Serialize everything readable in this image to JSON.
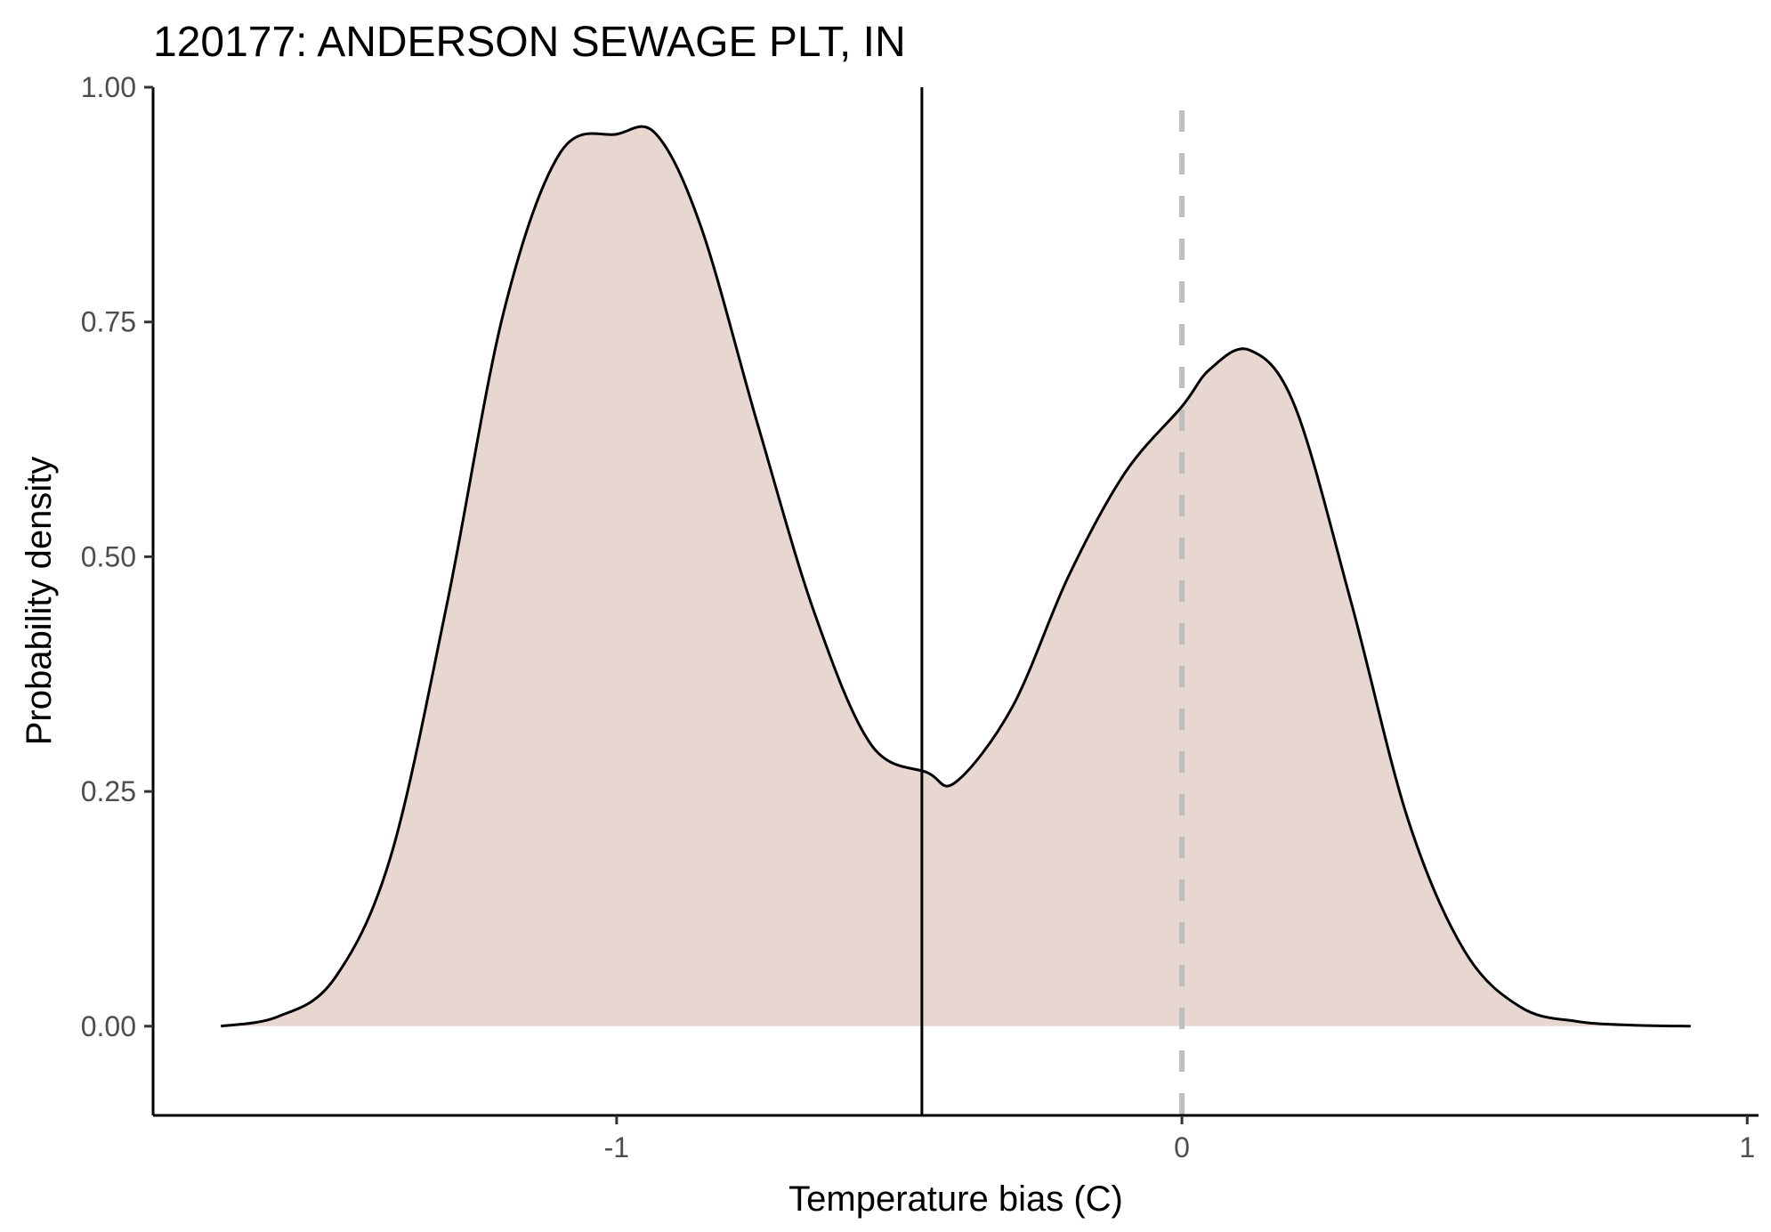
{
  "chart_data": {
    "type": "area",
    "title": "120177: ANDERSON SEWAGE PLT, IN",
    "xlabel": "Temperature bias (C)",
    "ylabel": "Probability density",
    "xlim": [
      -1.82,
      1.02
    ],
    "ylim": [
      -0.095,
      1.0
    ],
    "x_ticks": [
      -1,
      0,
      1
    ],
    "x_tick_labels": [
      "-1",
      "0",
      "1"
    ],
    "y_ticks": [
      0,
      0.25,
      0.5,
      0.75,
      1.0
    ],
    "y_tick_labels": [
      "0.00",
      "0.25",
      "0.50",
      "0.75",
      "1.00"
    ],
    "grid": false,
    "fill_color": "#e8d6d0",
    "line_color": "#000000",
    "density": {
      "x": [
        -1.7,
        -1.6,
        -1.5,
        -1.4,
        -1.3,
        -1.2,
        -1.1,
        -1.0,
        -0.93,
        -0.85,
        -0.75,
        -0.65,
        -0.55,
        -0.45,
        -0.4,
        -0.3,
        -0.2,
        -0.1,
        0.0,
        0.05,
        0.12,
        0.2,
        0.3,
        0.4,
        0.5,
        0.6,
        0.7,
        0.8,
        0.9
      ],
      "y": [
        0.0,
        0.01,
        0.05,
        0.18,
        0.45,
        0.76,
        0.93,
        0.95,
        0.95,
        0.85,
        0.64,
        0.44,
        0.3,
        0.27,
        0.26,
        0.34,
        0.48,
        0.59,
        0.66,
        0.7,
        0.72,
        0.66,
        0.45,
        0.22,
        0.08,
        0.02,
        0.005,
        0.001,
        0.0
      ]
    },
    "vlines": [
      {
        "x": -0.46,
        "style": "solid",
        "color": "#000000"
      },
      {
        "x": 0.0,
        "style": "dashed",
        "color": "#bfbfbf"
      }
    ]
  }
}
